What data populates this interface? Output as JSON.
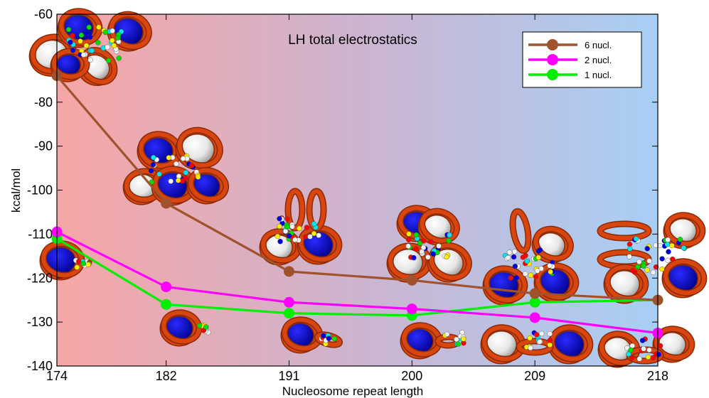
{
  "chart_data": {
    "type": "line",
    "title": "LH total electrostatics",
    "xlabel": "Nucleosome repeat length",
    "ylabel": "kcal/mol",
    "x": [
      174,
      182,
      191,
      200,
      209,
      218
    ],
    "x_tick_labels": [
      "174",
      "182",
      "191",
      "200",
      "209",
      "218"
    ],
    "y_ticks": [
      -60,
      -80,
      -90,
      -100,
      -110,
      -120,
      -130,
      -140
    ],
    "y_tick_labels": [
      "-60",
      "-80",
      "-90",
      "-100",
      "-110",
      "-120",
      "-130",
      "-140"
    ],
    "xlim": [
      174,
      218
    ],
    "ylim": [
      -140,
      -60
    ],
    "grid": false,
    "legend_position": "top-right",
    "background": "gradient from light red (left) to light blue (right)",
    "series": [
      {
        "name": "6 nucl.",
        "color": "#a0522d",
        "values": [
          -74,
          -103,
          -118.5,
          -120.5,
          -123.5,
          -125
        ]
      },
      {
        "name": "2 nucl.",
        "color": "#ff00ff",
        "values": [
          -109.5,
          -122,
          -125.5,
          -127,
          -129,
          -132.5
        ]
      },
      {
        "name": "1 nucl.",
        "color": "#00ee00",
        "values": [
          -111,
          -126,
          -128,
          -128.5,
          -125.5,
          -125
        ]
      }
    ],
    "annotations": "molecular structure renderings of nucleosome arrays placed near each data point"
  },
  "colors": {
    "gradient_left": "#f7a6a6",
    "gradient_mid": "#cdb4cf",
    "gradient_right": "#a8cff5",
    "dna": "#d9450e",
    "dna_dark": "#8a2a05",
    "histone_blue": "#0000dd",
    "globule_white": "#f4f4f4",
    "accent_red": "#ff0000",
    "accent_cyan": "#00e5ee",
    "accent_yellow": "#ffee00"
  }
}
